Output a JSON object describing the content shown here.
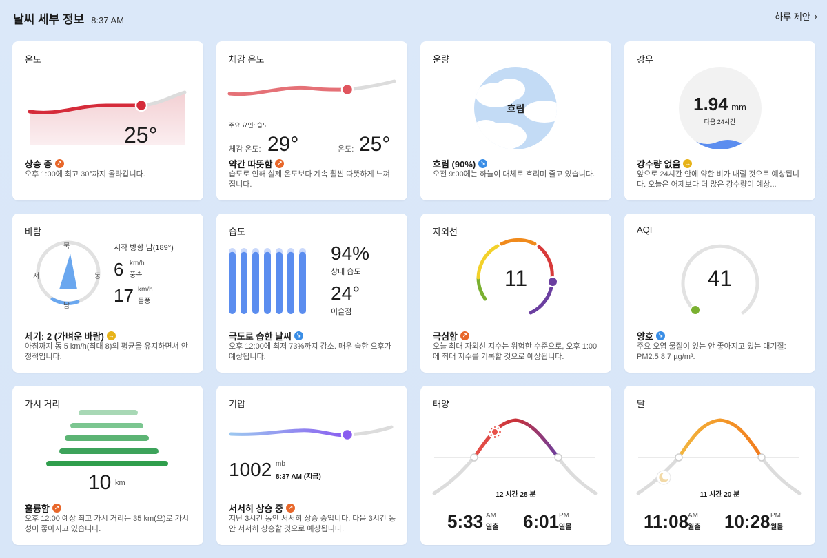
{
  "header": {
    "title": "날씨 세부 정보",
    "time": "8:37 AM",
    "daily_link": "하루 제안"
  },
  "colors": {
    "background": "#dbe8f9",
    "warm": "#d52b3a",
    "orange": "#e8672a",
    "blue": "#3a8ee6",
    "green": "#2f9e4c",
    "purple": "#8a5cf0"
  },
  "temperature": {
    "title": "온도",
    "value": "25°",
    "status": "상승 중",
    "desc": "오후 1:00에 최고 30°까지 올라갑니다."
  },
  "feels": {
    "title": "체감 온도",
    "factor": "주요 요인: 습도",
    "feels_label": "체감 온도:",
    "feels_value": "29°",
    "temp_label": "온도:",
    "temp_value": "25°",
    "status": "약간 따뜻함",
    "desc": "습도로 인해 실제 온도보다 계속 훨씬 따뜻하게 느껴집니다."
  },
  "cloud": {
    "title": "운량",
    "center": "흐림",
    "status": "흐림 (90%)",
    "desc": "오전 9:00에는 하늘이 대체로 흐리며 줄고 있습니다."
  },
  "rain": {
    "title": "강우",
    "amount": "1.94",
    "unit": "mm",
    "period": "다음 24시간",
    "status": "강수량 없음",
    "desc": "앞으로 24시간 안에 약한 비가 내릴 것으로 예상됩니다. 오늘은 어제보다 더 많은 강수량이 예상..."
  },
  "wind": {
    "title": "바람",
    "dir_text": "시작 방향 남(189°)",
    "speed": "6",
    "speed_unit": "km/h",
    "speed_label": "풍속",
    "gust": "17",
    "gust_unit": "km/h",
    "gust_label": "돌풍",
    "n": "북",
    "s": "남",
    "e": "동",
    "w": "서",
    "status": "세기: 2 (가벼운 바람)",
    "desc": "아침까지 동 5 km/h(최대 8)의 평균을 유지하면서 안정적입니다."
  },
  "humidity": {
    "title": "습도",
    "value": "94%",
    "value_label": "상대 습도",
    "dew": "24°",
    "dew_label": "이슬점",
    "level": 0.94,
    "status": "극도로 습한 날씨",
    "desc": "오후 12:00에 최저 73%까지 감소. 매우 습한 오후가 예상됩니다."
  },
  "uv": {
    "title": "자외선",
    "value": "11",
    "status": "극심함",
    "desc": "오늘 최대 자외선 지수는 위험한 수준으로, 오후 1:00에 최대 지수를 기록할 것으로 예상됩니다."
  },
  "aqi": {
    "title": "AQI",
    "value": "41",
    "status": "양호",
    "desc": "주요 오염 물질이 있는 안 좋아지고 있는 대기질: PM2.5 8.7 µg/m³."
  },
  "visibility": {
    "title": "가시 거리",
    "value": "10",
    "unit": "km",
    "status": "훌륭함",
    "desc": "오후 12:00 예상 최고 가시 거리는 35 km(으)로 가시성이 좋아지고 있습니다."
  },
  "pressure": {
    "title": "기압",
    "value": "1002",
    "unit": "mb",
    "time": "8:37 AM (지금)",
    "status": "서서히 상승 중",
    "desc": "지난 3시간 동안 서서히 상승 중입니다. 다음 3시간 동안 서서히 상승할 것으로 예상됩니다."
  },
  "sun": {
    "title": "태양",
    "duration": "12 시간 28 분",
    "rise_time": "5:33",
    "rise_ampm": "AM",
    "rise_label": "일출",
    "set_time": "6:01",
    "set_ampm": "PM",
    "set_label": "일몰"
  },
  "moon": {
    "title": "달",
    "duration": "11 시간 20 분",
    "rise_time": "11:08",
    "rise_ampm": "AM",
    "rise_label": "월출",
    "set_time": "10:28",
    "set_ampm": "PM",
    "set_label": "월몰"
  }
}
